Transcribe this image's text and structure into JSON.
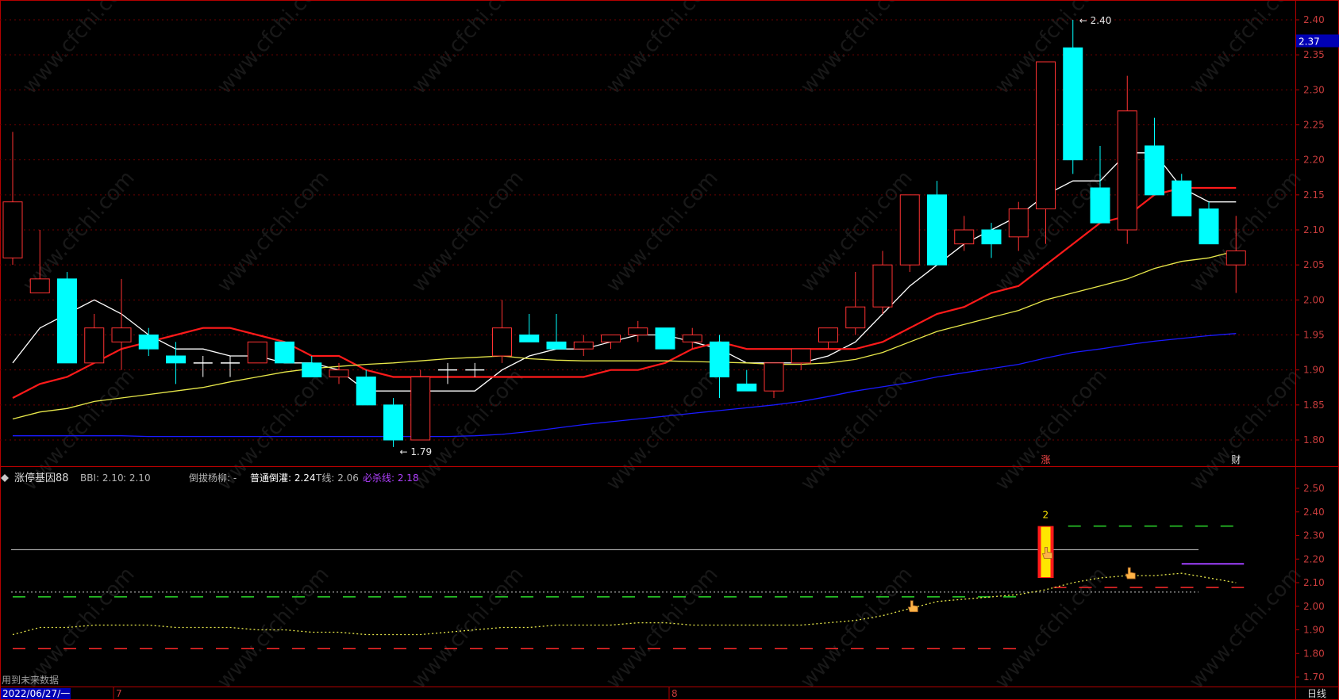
{
  "chart_data": [
    {
      "type": "candlestick",
      "panel": "main",
      "ylim": [
        1.77,
        2.41
      ],
      "y_ticks": [
        "2.40",
        "2.35",
        "2.30",
        "2.25",
        "2.20",
        "2.15",
        "2.10",
        "2.05",
        "2.00",
        "1.95",
        "1.90",
        "1.85",
        "1.80"
      ],
      "current_price": "2.37",
      "high_label": "2.40",
      "low_label": "1.79",
      "candles": [
        {
          "o": 2.06,
          "h": 2.24,
          "l": 2.05,
          "c": 2.14
        },
        {
          "o": 2.01,
          "h": 2.1,
          "l": 2.01,
          "c": 2.03
        },
        {
          "o": 2.03,
          "h": 2.04,
          "l": 1.91,
          "c": 1.91
        },
        {
          "o": 1.91,
          "h": 1.98,
          "l": 1.91,
          "c": 1.96
        },
        {
          "o": 1.94,
          "h": 2.03,
          "l": 1.9,
          "c": 1.96
        },
        {
          "o": 1.95,
          "h": 1.96,
          "l": 1.92,
          "c": 1.93
        },
        {
          "o": 1.92,
          "h": 1.94,
          "l": 1.88,
          "c": 1.91
        },
        {
          "o": 1.91,
          "h": 1.92,
          "l": 1.89,
          "c": 1.91
        },
        {
          "o": 1.91,
          "h": 1.92,
          "l": 1.89,
          "c": 1.91
        },
        {
          "o": 1.91,
          "h": 1.94,
          "l": 1.91,
          "c": 1.94
        },
        {
          "o": 1.94,
          "h": 1.94,
          "l": 1.91,
          "c": 1.91
        },
        {
          "o": 1.91,
          "h": 1.92,
          "l": 1.89,
          "c": 1.89
        },
        {
          "o": 1.89,
          "h": 1.91,
          "l": 1.88,
          "c": 1.9
        },
        {
          "o": 1.89,
          "h": 1.9,
          "l": 1.85,
          "c": 1.85
        },
        {
          "o": 1.85,
          "h": 1.86,
          "l": 1.79,
          "c": 1.8
        },
        {
          "o": 1.8,
          "h": 1.9,
          "l": 1.8,
          "c": 1.89
        },
        {
          "o": 1.9,
          "h": 1.91,
          "l": 1.88,
          "c": 1.9
        },
        {
          "o": 1.9,
          "h": 1.91,
          "l": 1.89,
          "c": 1.9
        },
        {
          "o": 1.92,
          "h": 2.0,
          "l": 1.91,
          "c": 1.96
        },
        {
          "o": 1.95,
          "h": 1.98,
          "l": 1.94,
          "c": 1.94
        },
        {
          "o": 1.94,
          "h": 1.98,
          "l": 1.93,
          "c": 1.93
        },
        {
          "o": 1.93,
          "h": 1.95,
          "l": 1.92,
          "c": 1.94
        },
        {
          "o": 1.94,
          "h": 1.95,
          "l": 1.93,
          "c": 1.95
        },
        {
          "o": 1.95,
          "h": 1.97,
          "l": 1.94,
          "c": 1.96
        },
        {
          "o": 1.96,
          "h": 1.96,
          "l": 1.93,
          "c": 1.93
        },
        {
          "o": 1.94,
          "h": 1.96,
          "l": 1.93,
          "c": 1.95
        },
        {
          "o": 1.94,
          "h": 1.95,
          "l": 1.86,
          "c": 1.89
        },
        {
          "o": 1.88,
          "h": 1.9,
          "l": 1.87,
          "c": 1.87
        },
        {
          "o": 1.87,
          "h": 1.91,
          "l": 1.86,
          "c": 1.91
        },
        {
          "o": 1.91,
          "h": 1.93,
          "l": 1.9,
          "c": 1.93
        },
        {
          "o": 1.94,
          "h": 1.96,
          "l": 1.93,
          "c": 1.96
        },
        {
          "o": 1.96,
          "h": 2.04,
          "l": 1.95,
          "c": 1.99
        },
        {
          "o": 1.99,
          "h": 2.07,
          "l": 1.98,
          "c": 2.05
        },
        {
          "o": 2.05,
          "h": 2.15,
          "l": 2.04,
          "c": 2.15
        },
        {
          "o": 2.15,
          "h": 2.17,
          "l": 2.05,
          "c": 2.05
        },
        {
          "o": 2.08,
          "h": 2.12,
          "l": 2.07,
          "c": 2.1
        },
        {
          "o": 2.1,
          "h": 2.11,
          "l": 2.06,
          "c": 2.08
        },
        {
          "o": 2.09,
          "h": 2.14,
          "l": 2.07,
          "c": 2.13
        },
        {
          "o": 2.13,
          "h": 2.34,
          "l": 2.08,
          "c": 2.34
        },
        {
          "o": 2.36,
          "h": 2.4,
          "l": 2.18,
          "c": 2.2
        },
        {
          "o": 2.16,
          "h": 2.22,
          "l": 2.11,
          "c": 2.11
        },
        {
          "o": 2.1,
          "h": 2.32,
          "l": 2.08,
          "c": 2.27
        },
        {
          "o": 2.22,
          "h": 2.26,
          "l": 2.15,
          "c": 2.15
        },
        {
          "o": 2.17,
          "h": 2.18,
          "l": 2.12,
          "c": 2.12
        },
        {
          "o": 2.13,
          "h": 2.14,
          "l": 2.08,
          "c": 2.08
        },
        {
          "o": 2.05,
          "h": 2.12,
          "l": 2.01,
          "c": 2.07
        }
      ],
      "series": [
        {
          "color": "#ffffff",
          "values": [
            1.91,
            1.96,
            1.98,
            2.0,
            1.98,
            1.95,
            1.93,
            1.93,
            1.92,
            1.92,
            1.91,
            1.91,
            1.9,
            1.87,
            1.87,
            1.87,
            1.87,
            1.87,
            1.9,
            1.92,
            1.93,
            1.93,
            1.94,
            1.95,
            1.95,
            1.94,
            1.93,
            1.91,
            1.91,
            1.91,
            1.92,
            1.94,
            1.98,
            2.02,
            2.05,
            2.08,
            2.1,
            2.12,
            2.15,
            2.17,
            2.17,
            2.21,
            2.21,
            2.16,
            2.14,
            2.14
          ]
        },
        {
          "color": "#ff1a1a",
          "values": [
            1.86,
            1.88,
            1.89,
            1.91,
            1.93,
            1.94,
            1.95,
            1.96,
            1.96,
            1.95,
            1.94,
            1.92,
            1.92,
            1.9,
            1.89,
            1.89,
            1.89,
            1.89,
            1.89,
            1.89,
            1.89,
            1.89,
            1.9,
            1.9,
            1.91,
            1.93,
            1.94,
            1.93,
            1.93,
            1.93,
            1.93,
            1.93,
            1.94,
            1.96,
            1.98,
            1.99,
            2.01,
            2.02,
            2.05,
            2.08,
            2.11,
            2.12,
            2.15,
            2.16,
            2.16,
            2.16
          ]
        },
        {
          "color": "#e8e84a",
          "values": [
            1.83,
            1.84,
            1.845,
            1.855,
            1.86,
            1.865,
            1.87,
            1.875,
            1.883,
            1.89,
            1.897,
            1.902,
            1.905,
            1.908,
            1.91,
            1.913,
            1.916,
            1.918,
            1.92,
            1.916,
            1.914,
            1.913,
            1.913,
            1.913,
            1.913,
            1.912,
            1.911,
            1.91,
            1.908,
            1.908,
            1.91,
            1.915,
            1.925,
            1.94,
            1.955,
            1.965,
            1.975,
            1.985,
            2.0,
            2.01,
            2.02,
            2.03,
            2.045,
            2.055,
            2.06,
            2.07
          ]
        },
        {
          "color": "#1a1aff",
          "values": [
            1.806,
            1.806,
            1.806,
            1.806,
            1.806,
            1.805,
            1.805,
            1.805,
            1.805,
            1.805,
            1.805,
            1.805,
            1.805,
            1.805,
            1.805,
            1.805,
            1.805,
            1.806,
            1.808,
            1.812,
            1.817,
            1.822,
            1.826,
            1.83,
            1.834,
            1.838,
            1.842,
            1.846,
            1.85,
            1.855,
            1.862,
            1.87,
            1.876,
            1.882,
            1.89,
            1.896,
            1.902,
            1.908,
            1.917,
            1.925,
            1.93,
            1.936,
            1.941,
            1.945,
            1.949,
            1.952
          ]
        }
      ],
      "markers": [
        {
          "index": 38,
          "text": "涨"
        },
        {
          "index": 45,
          "text": "财"
        }
      ]
    },
    {
      "type": "line",
      "panel": "indicator",
      "title": "涨停基因88",
      "legend": [
        {
          "text": "BBI: 2.10",
          "color": "#b4b4b4"
        },
        {
          "text": ": 2.10",
          "color": "#b4b4b4"
        },
        {
          "text": "倒拔杨柳: -",
          "color": "#b4b4b4"
        },
        {
          "text": "普通倒灌: 2.24",
          "color": "#ffffff"
        },
        {
          "text": "T线: 2.06",
          "color": "#b4b4b4"
        },
        {
          "text": "必杀线: 2.18",
          "color": "#b040ff"
        }
      ],
      "ylim": [
        1.65,
        2.55
      ],
      "y_ticks": [
        "2.50",
        "2.40",
        "2.30",
        "2.20",
        "2.10",
        "2.00",
        "1.90",
        "1.80",
        "1.70"
      ],
      "signal_bar": {
        "index": 38,
        "low": 2.12,
        "high": 2.34,
        "label": "2"
      },
      "white_level": 2.24,
      "t_line": 2.06,
      "kill_line": {
        "value": 2.18,
        "from": 43,
        "to": 45
      },
      "green_dash_1": {
        "value": 2.04,
        "from": 0,
        "to": 37
      },
      "green_dash_2": {
        "value": 2.34,
        "from": 39,
        "to": 45
      },
      "red_dash_1": {
        "value": 1.82,
        "from": 0,
        "to": 37
      },
      "red_dash_2": {
        "value": 2.08,
        "from": 38,
        "to": 45
      },
      "bbi_dotted": [
        1.88,
        1.91,
        1.91,
        1.92,
        1.92,
        1.92,
        1.91,
        1.91,
        1.91,
        1.9,
        1.9,
        1.89,
        1.89,
        1.88,
        1.88,
        1.88,
        1.89,
        1.9,
        1.91,
        1.91,
        1.92,
        1.92,
        1.92,
        1.93,
        1.93,
        1.92,
        1.92,
        1.92,
        1.92,
        1.92,
        1.93,
        1.94,
        1.96,
        1.99,
        2.02,
        2.03,
        2.04,
        2.05,
        2.07,
        2.1,
        2.12,
        2.13,
        2.13,
        2.14,
        2.12,
        2.1
      ],
      "pointers": [
        33,
        41
      ]
    }
  ],
  "footer": {
    "note": "用到未来数据",
    "date": "2022/06/27/一",
    "month_7": "7",
    "month_8": "8",
    "period": "日线"
  },
  "watermark": "www.cfchi.com",
  "colors": {
    "up": "#ff3232",
    "down": "#00ffff",
    "frame": "#b40000",
    "axis_text": "#c83c3c"
  }
}
